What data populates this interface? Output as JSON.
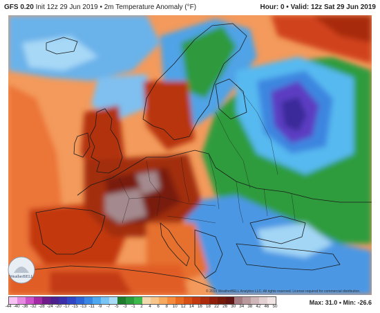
{
  "header": {
    "model": "GFS 0.20",
    "subtitle": "Init 12z 29 Jun 2019 • 2m Temperature Anomaly (°F)",
    "hour_valid": "Hour: 0 • Valid: 12z Sat 29 Jun 2019"
  },
  "map": {
    "region": "Europe",
    "copyright": "© 2019 WeatherBELL Analytics LLC. All rights reserved. License required for commercial distribution."
  },
  "legend": {
    "ticks": [
      "-44",
      "-40",
      "-36",
      "-32",
      "-28",
      "-24",
      "-20",
      "-17",
      "-15",
      "-13",
      "-11",
      "-9",
      "-7",
      "-5",
      "-3",
      "-1",
      "2",
      "4",
      "6",
      "8",
      "10",
      "12",
      "14",
      "16",
      "18",
      "22",
      "26",
      "30",
      "34",
      "38",
      "42",
      "46",
      "50"
    ],
    "colors": [
      "#f7c1f4",
      "#e58ae0",
      "#cc52c8",
      "#a32aa4",
      "#6f1c8a",
      "#4b1f8c",
      "#3b2ea8",
      "#3046c4",
      "#2f64d6",
      "#3a86e3",
      "#4ea8ef",
      "#78c4f4",
      "#a7dbf6",
      "#1e7b2e",
      "#2b9a3a",
      "#3db84b",
      "#f3d9b0",
      "#f7c58a",
      "#f6a95f",
      "#f48b3d",
      "#e86b22",
      "#d84f15",
      "#c43a10",
      "#ab2c0d",
      "#8f1f0b",
      "#741a0a",
      "#601512",
      "#a27c80",
      "#b9999c",
      "#cfb6b9",
      "#e3d0d2",
      "#f0e4e5"
    ],
    "max_label": "Max: 31.0",
    "min_label": "Min: -26.6"
  },
  "colors": {
    "ocean_warm": "#e8622a",
    "ocean_neutral": "#f5a46b",
    "hot": "#9b2a12",
    "very_hot": "#6e1a0c",
    "extreme": "#a48a8e",
    "cool_blue": "#5aa7e8",
    "cool_green": "#2d9a3c",
    "cold_purple": "#5a3dbf",
    "cold_core": "#3a2a9a",
    "border": "#1a1a1a"
  },
  "logo": {
    "name": "WeatherBELL"
  }
}
